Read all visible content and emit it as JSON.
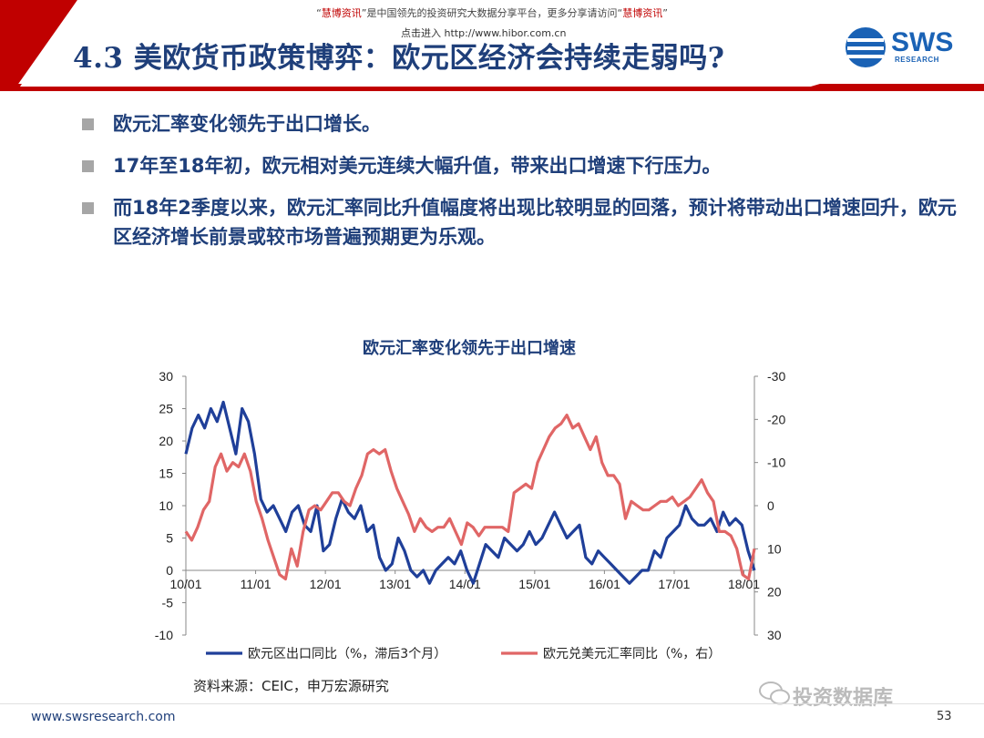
{
  "watermark": {
    "line1_prefix": "“",
    "line1_brand": "慧博资讯",
    "line1_mid": "”是中国领先的投资研究大数据分享平台，更多分享请访问“",
    "line1_brand2": "慧博资讯",
    "line1_suffix": "”",
    "line2": "点击进入  http://www.hibor.com.cn"
  },
  "header": {
    "title": "4.3 美欧货币政策博弈：欧元区经济会持续走弱吗?",
    "logo_text": "SWS",
    "logo_sub": "RESEARCH"
  },
  "bullets": [
    "欧元汇率变化领先于出口增长。",
    "17年至18年初，欧元相对美元连续大幅升值，带来出口增速下行压力。",
    "而18年2季度以来，欧元汇率同比升值幅度将出现比较明显的回落，预计将带动出口增速回升，欧元区经济增长前景或较市场普遍预期更为乐观。"
  ],
  "chart_data": {
    "type": "line",
    "title": "欧元汇率变化领先于出口增速",
    "x_ticks": [
      "10/01",
      "11/01",
      "12/01",
      "13/01",
      "14/01",
      "15/01",
      "16/01",
      "17/01",
      "18/01"
    ],
    "ylim_left": [
      -10,
      30
    ],
    "yticks_left": [
      "30",
      "25",
      "20",
      "15",
      "10",
      "5",
      "0",
      "-5",
      "-10"
    ],
    "ylim_right": [
      30,
      -30
    ],
    "yticks_right": [
      "-30",
      "-20",
      "-10",
      "0",
      "10",
      "20",
      "30"
    ],
    "legend_position": "bottom",
    "grid": false,
    "series": [
      {
        "name": "欧元区出口同比（%，滞后3个月）",
        "axis": "left",
        "color": "#1f3f99",
        "values": [
          18,
          22,
          24,
          22,
          25,
          23,
          26,
          22,
          18,
          25,
          23,
          18,
          11,
          9,
          10,
          8,
          6,
          9,
          10,
          7,
          6,
          10,
          3,
          4,
          8,
          11,
          9,
          8,
          10,
          6,
          7,
          2,
          0,
          1,
          5,
          3,
          0,
          -1,
          0,
          -2,
          0,
          1,
          2,
          1,
          3,
          0,
          -2,
          1,
          4,
          3,
          2,
          5,
          4,
          3,
          4,
          6,
          4,
          5,
          7,
          9,
          7,
          5,
          6,
          7,
          2,
          1,
          3,
          2,
          1,
          0,
          -1,
          -2,
          -1,
          0,
          0,
          3,
          2,
          5,
          6,
          7,
          10,
          8,
          7,
          7,
          8,
          6,
          9,
          7,
          8,
          7,
          3,
          0
        ]
      },
      {
        "name": "欧元兑美元汇率同比（%，右）",
        "axis": "right",
        "color": "#e06666",
        "values": [
          6,
          8,
          5,
          1,
          -1,
          -9,
          -12,
          -8,
          -10,
          -9,
          -12,
          -8,
          -1,
          3,
          8,
          12,
          16,
          17,
          10,
          14,
          6,
          1,
          0,
          1,
          -1,
          -3,
          -3,
          -1,
          0,
          -4,
          -7,
          -12,
          -13,
          -12,
          -13,
          -8,
          -4,
          -1,
          2,
          6,
          3,
          5,
          6,
          5,
          5,
          3,
          6,
          9,
          4,
          5,
          7,
          5,
          5,
          5,
          5,
          6,
          -3,
          -4,
          -5,
          -4,
          -10,
          -13,
          -16,
          -18,
          -19,
          -21,
          -18,
          -19,
          -16,
          -13,
          -16,
          -10,
          -7,
          -7,
          -5,
          3,
          -1,
          0,
          1,
          1,
          0,
          -1,
          -1,
          -2,
          0,
          -1,
          -2,
          -4,
          -6,
          -3,
          -1,
          6,
          6,
          7,
          10,
          16,
          17,
          10
        ]
      }
    ]
  },
  "source": "资料来源：CEIC，申万宏源研究",
  "footer": {
    "url": "www.swsresearch.com",
    "page": "53",
    "wechat": "投资数据库"
  },
  "colors": {
    "title_blue": "#1f3f7a",
    "header_red": "#c00000",
    "series_blue": "#1f3f99",
    "series_red": "#e06666"
  }
}
